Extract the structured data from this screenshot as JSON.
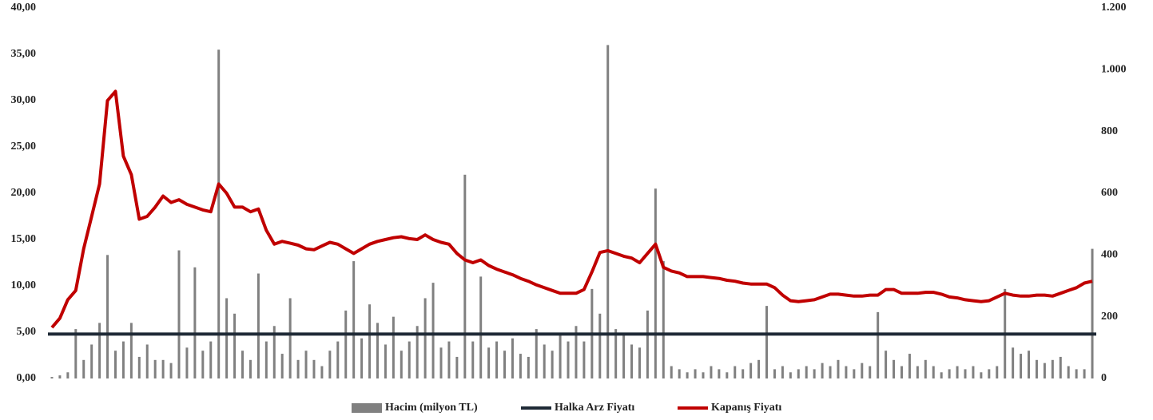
{
  "chart_data": {
    "type": "bar_line_dual",
    "categories": [
      null,
      null,
      null,
      null,
      null,
      null,
      null,
      null,
      null,
      null,
      null,
      null,
      null,
      null,
      null,
      null,
      null,
      null,
      null,
      null,
      null,
      null,
      null,
      null,
      null,
      null,
      null,
      null,
      null,
      null,
      null,
      null,
      null,
      null,
      null,
      null,
      null,
      null,
      null,
      null,
      null,
      null,
      null,
      null,
      null,
      null,
      null,
      null,
      null,
      null,
      null,
      null,
      null,
      null,
      null,
      null,
      null,
      null,
      null,
      null,
      null,
      null,
      null,
      null,
      null,
      null,
      null,
      null,
      null,
      null,
      null,
      null,
      null,
      null,
      null,
      null,
      null,
      null,
      null,
      null,
      null,
      null,
      null,
      null,
      null,
      null,
      null,
      null,
      null,
      null,
      null,
      null,
      null,
      null,
      null,
      null,
      null,
      null,
      null,
      null,
      null,
      null,
      null,
      null,
      null,
      null,
      null,
      null,
      null,
      null,
      null,
      null,
      null,
      null,
      null,
      null,
      null,
      null,
      null,
      null,
      null,
      null,
      null,
      null,
      null,
      null,
      null,
      null,
      null,
      null,
      null,
      null
    ],
    "series": [
      {
        "name": "Hacim (milyon TL)",
        "color": "#808080",
        "axis": "y2",
        "values": [
          5,
          10,
          20,
          160,
          60,
          110,
          180,
          400,
          90,
          120,
          180,
          70,
          110,
          60,
          60,
          50,
          415,
          100,
          360,
          90,
          120,
          1065,
          260,
          210,
          90,
          60,
          340,
          120,
          170,
          80,
          260,
          60,
          90,
          60,
          40,
          90,
          120,
          220,
          380,
          130,
          240,
          180,
          110,
          200,
          90,
          120,
          170,
          260,
          310,
          100,
          120,
          70,
          660,
          120,
          330,
          100,
          120,
          90,
          130,
          80,
          70,
          160,
          110,
          90,
          140,
          120,
          170,
          120,
          290,
          210,
          1080,
          160,
          140,
          110,
          100,
          220,
          615,
          380,
          40,
          30,
          20,
          30,
          20,
          40,
          30,
          20,
          40,
          30,
          50,
          60,
          235,
          30,
          40,
          20,
          30,
          40,
          30,
          50,
          40,
          60,
          40,
          30,
          50,
          40,
          215,
          90,
          60,
          40,
          80,
          40,
          60,
          40,
          20,
          30,
          40,
          30,
          40,
          20,
          30,
          40,
          290,
          100,
          80,
          90,
          60,
          50,
          60,
          70,
          40,
          30,
          30,
          420
        ]
      },
      {
        "name": "Halka Arz Fiyatı",
        "color": "#1f2a36",
        "value": 4.8
      },
      {
        "name": "Kapanış Fiyatı",
        "color": "#c00000",
        "values": [
          5.5,
          6.5,
          8.5,
          9.5,
          14,
          17.5,
          21,
          30,
          31,
          24,
          22,
          17.2,
          17.5,
          18.5,
          19.7,
          19,
          19.3,
          18.8,
          18.5,
          18.2,
          18,
          21,
          20,
          18.5,
          18.5,
          18,
          18.3,
          16,
          14.5,
          14.8,
          14.6,
          14.4,
          14,
          13.9,
          14.3,
          14.7,
          14.5,
          14,
          13.5,
          14,
          14.5,
          14.8,
          15,
          15.2,
          15.3,
          15.1,
          15,
          15.5,
          15,
          14.7,
          14.5,
          13.5,
          12.8,
          12.5,
          12.8,
          12.2,
          11.8,
          11.5,
          11.2,
          10.8,
          10.5,
          10.1,
          9.8,
          9.5,
          9.2,
          9.2,
          9.2,
          9.6,
          11.5,
          13.6,
          13.8,
          13.5,
          13.2,
          13,
          12.5,
          13.5,
          14.5,
          12,
          11.6,
          11.4,
          11,
          11,
          11,
          10.9,
          10.8,
          10.6,
          10.5,
          10.3,
          10.2,
          10.2,
          10.2,
          9.8,
          9,
          8.4,
          8.3,
          8.4,
          8.5,
          8.8,
          9.1,
          9.1,
          9,
          8.9,
          8.9,
          9,
          9,
          9.6,
          9.6,
          9.2,
          9.2,
          9.2,
          9.3,
          9.3,
          9.1,
          8.8,
          8.7,
          8.5,
          8.4,
          8.3,
          8.4,
          8.8,
          9.2,
          9,
          8.9,
          8.9,
          9,
          9,
          8.9,
          9.2,
          9.5,
          9.8,
          10.3,
          10.5
        ]
      }
    ],
    "ylim": [
      0,
      40
    ],
    "yticks": [
      {
        "value": 0,
        "label": "0,00"
      },
      {
        "value": 5,
        "label": "5,00"
      },
      {
        "value": 10,
        "label": "10,00"
      },
      {
        "value": 15,
        "label": "15,00"
      },
      {
        "value": 20,
        "label": "20,00"
      },
      {
        "value": 25,
        "label": "25,00"
      },
      {
        "value": 30,
        "label": "30,00"
      },
      {
        "value": 35,
        "label": "35,00"
      },
      {
        "value": 40,
        "label": "40,00"
      }
    ],
    "y2lim": [
      0,
      1200
    ],
    "y2ticks": [
      0,
      200,
      400,
      600,
      800,
      {
        "value": 1000,
        "label": "1.000"
      },
      {
        "value": 1200,
        "label": "1.200"
      }
    ],
    "grid": false,
    "legend": "bottom"
  }
}
